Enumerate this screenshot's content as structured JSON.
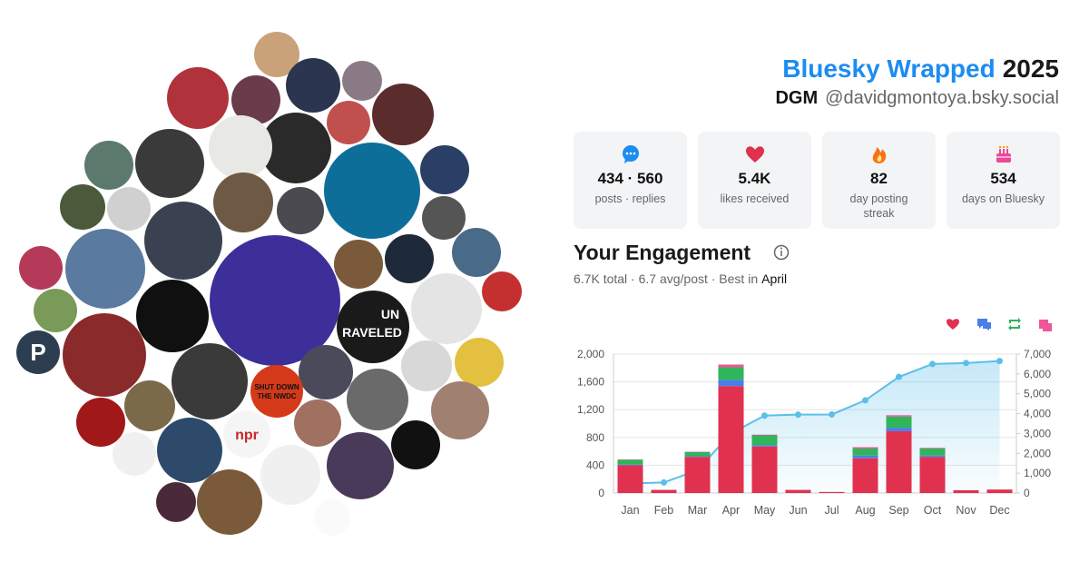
{
  "header": {
    "title": "Bluesky Wrapped",
    "year": "2025",
    "name": "DGM",
    "handle": "@davidgmontoya.bsky.social"
  },
  "stats": [
    {
      "value": "434 · 560",
      "label": "posts · replies"
    },
    {
      "value": "5.4K",
      "label": "likes received"
    },
    {
      "value": "82",
      "label": "day posting streak"
    },
    {
      "value": "534",
      "label": "days on Bluesky"
    }
  ],
  "avatar_texts": {
    "p": "P",
    "npr": "npr",
    "un": "UN",
    "raveled": "RAVELED",
    "shut": "SHUT DOWN",
    "nwdc": "THE NWDC"
  },
  "chart_data": {
    "type": "bar",
    "stacked": true,
    "title": "Your Engagement",
    "summary": "6.7K total · 6.7 avg/post · Best in",
    "best_month": "April",
    "categories": [
      "Jan",
      "Feb",
      "Mar",
      "Apr",
      "May",
      "Jun",
      "Jul",
      "Aug",
      "Sep",
      "Oct",
      "Nov",
      "Dec"
    ],
    "series": [
      {
        "color": "#e0314f",
        "values": [
          400,
          45,
          520,
          1540,
          670,
          45,
          15,
          500,
          890,
          520,
          40,
          50
        ]
      },
      {
        "color": "#4a7ee8",
        "values": [
          10,
          0,
          10,
          90,
          20,
          0,
          0,
          40,
          50,
          20,
          0,
          0
        ]
      },
      {
        "color": "#2fb55a",
        "values": [
          70,
          0,
          60,
          180,
          140,
          0,
          0,
          100,
          160,
          100,
          0,
          0
        ]
      },
      {
        "color": "#f0559a",
        "values": [
          5,
          0,
          5,
          40,
          10,
          0,
          0,
          20,
          20,
          10,
          0,
          0
        ]
      },
      {
        "type": "line",
        "axis": "y2",
        "color": "#5bbfe9",
        "values": [
          480,
          530,
          1150,
          3000,
          3900,
          3950,
          3960,
          4670,
          5850,
          6500,
          6550,
          6650
        ]
      }
    ],
    "ylim": [
      0,
      2000
    ],
    "yticks": [
      0,
      400,
      800,
      {
        "value": 1200,
        "label": "1,200"
      },
      {
        "value": 1600,
        "label": "1,600"
      },
      {
        "value": 2000,
        "label": "2,000"
      }
    ],
    "y2lim": [
      0,
      7000
    ],
    "y2ticks": [
      0,
      {
        "value": 1000,
        "label": "1,000"
      },
      {
        "value": 2000,
        "label": "2,000"
      },
      {
        "value": 3000,
        "label": "3,000"
      },
      {
        "value": 4000,
        "label": "4,000"
      },
      {
        "value": 5000,
        "label": "5,000"
      },
      {
        "value": 6000,
        "label": "6,000"
      },
      {
        "value": 7000,
        "label": "7,000"
      }
    ],
    "grid": true
  }
}
